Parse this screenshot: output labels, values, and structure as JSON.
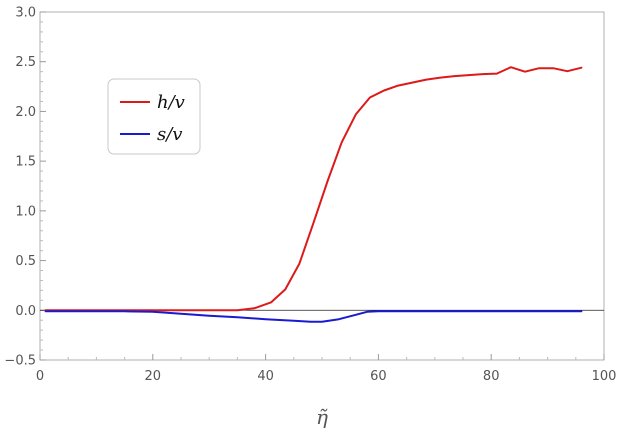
{
  "chart_data": {
    "type": "line",
    "xlabel": "η̃",
    "ylabel": "",
    "xlim": [
      0,
      100
    ],
    "ylim": [
      -0.5,
      3.0
    ],
    "xticks": [
      0,
      20,
      40,
      60,
      80,
      100
    ],
    "yticks": [
      -0.5,
      0.0,
      0.5,
      1.0,
      1.5,
      2.0,
      2.5,
      3.0
    ],
    "xtick_labels": [
      "0",
      "20",
      "40",
      "60",
      "80",
      "100"
    ],
    "ytick_labels": [
      "−0.5",
      "0.0",
      "0.5",
      "1.0",
      "1.5",
      "2.0",
      "2.5",
      "3.0"
    ],
    "grid": false,
    "zero_line": true,
    "legend_position": "upper-left",
    "series": [
      {
        "name": "h/v",
        "color": "#dd1a1a",
        "x": [
          1,
          5,
          10,
          15,
          20,
          25,
          30,
          35,
          38,
          41,
          43.5,
          46,
          48.5,
          51,
          53.5,
          56,
          58.5,
          61,
          63.5,
          66,
          68.5,
          71,
          73.5,
          76,
          78.5,
          81,
          83.5,
          86,
          88.5,
          91,
          93.5,
          96
        ],
        "y": [
          0,
          0,
          0,
          0,
          0,
          0,
          0,
          0,
          0.02,
          0.08,
          0.21,
          0.47,
          0.88,
          1.3,
          1.69,
          1.97,
          2.14,
          2.21,
          2.26,
          2.29,
          2.32,
          2.34,
          2.355,
          2.365,
          2.375,
          2.38,
          2.445,
          2.4,
          2.435,
          2.435,
          2.405,
          2.44
        ]
      },
      {
        "name": "s/v",
        "color": "#1a1ad0",
        "x": [
          1,
          5,
          10,
          15,
          20,
          25,
          30,
          35,
          40,
          45,
          48,
          50,
          53,
          56,
          58,
          60,
          65,
          70,
          75,
          80,
          85,
          90,
          96
        ],
        "y": [
          -0.01,
          -0.01,
          -0.01,
          -0.01,
          -0.015,
          -0.035,
          -0.055,
          -0.07,
          -0.09,
          -0.105,
          -0.115,
          -0.115,
          -0.09,
          -0.045,
          -0.015,
          -0.01,
          -0.01,
          -0.01,
          -0.01,
          -0.01,
          -0.01,
          -0.01,
          -0.01
        ]
      }
    ]
  }
}
